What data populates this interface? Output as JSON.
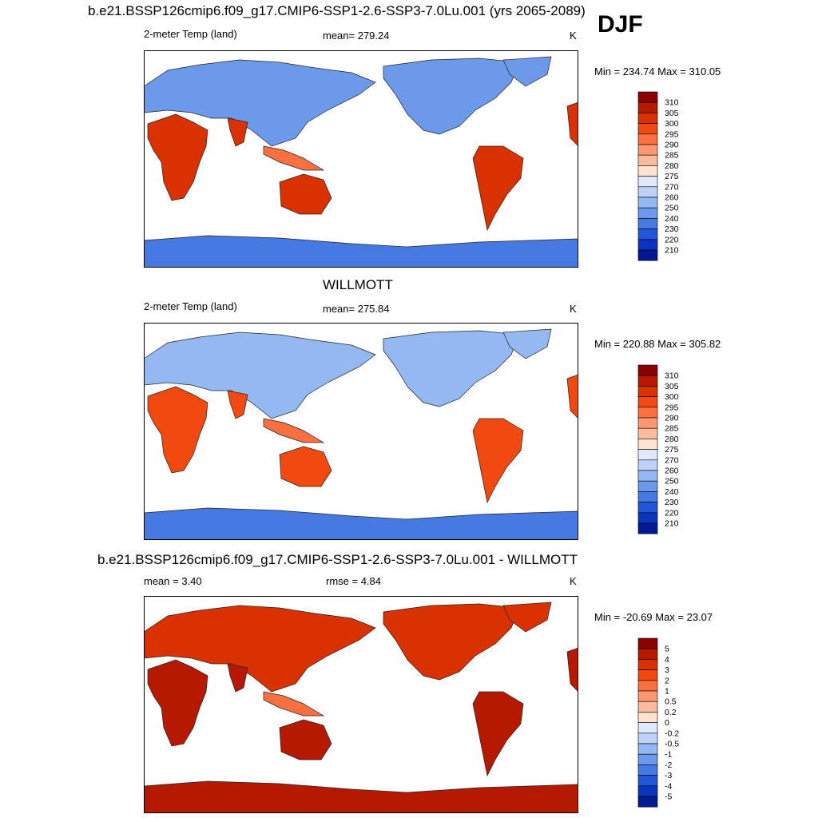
{
  "header": {
    "case_title": "b.e21.BSSP126cmip6.f09_g17.CMIP6-SSP1-2.6-SSP3-7.0Lu.001 (yrs 2065-2089)",
    "season": "DJF"
  },
  "panels": [
    {
      "id": "model",
      "left_label": "2-meter Temp (land)",
      "center_label": "mean= 279.24",
      "units": "K",
      "minmax": "Min = 234.74 Max = 310.05"
    },
    {
      "id": "obs",
      "title": "WILLMOTT",
      "left_label": "2-meter Temp (land)",
      "center_label": "mean= 275.84",
      "units": "K",
      "minmax": "Min = 220.88 Max = 305.82"
    },
    {
      "id": "diff",
      "title": "b.e21.BSSP126cmip6.f09_g17.CMIP6-SSP1-2.6-SSP3-7.0Lu.001 - WILLMOTT",
      "left_label": "mean =   3.40",
      "center_label": "rmse =   4.84",
      "units": "K",
      "minmax": "Min = -20.69 Max =  23.07"
    }
  ],
  "chart_data": [
    {
      "type": "heatmap",
      "title": "b.e21.BSSP126cmip6.f09_g17.CMIP6-SSP1-2.6-SSP3-7.0Lu.001 (yrs 2065-2089)",
      "variable": "2-meter Temp (land)",
      "units": "K",
      "mean": 279.24,
      "min": 234.74,
      "max": 310.05,
      "colorbar_labels": [
        "310",
        "305",
        "300",
        "295",
        "290",
        "285",
        "280",
        "275",
        "270",
        "260",
        "250",
        "240",
        "230",
        "220",
        "210"
      ],
      "colorbar_colors": [
        "#8b0000",
        "#b51a00",
        "#d93200",
        "#f04a10",
        "#fb7040",
        "#fc9772",
        "#fdbb9d",
        "#fde2cf",
        "#dfe9fb",
        "#bcd3f7",
        "#94b8f1",
        "#6c99ea",
        "#4679e2",
        "#2256d8",
        "#0b34bf",
        "#001a93"
      ]
    },
    {
      "type": "heatmap",
      "title": "WILLMOTT",
      "variable": "2-meter Temp (land)",
      "units": "K",
      "mean": 275.84,
      "min": 220.88,
      "max": 305.82,
      "colorbar_labels": [
        "310",
        "305",
        "300",
        "295",
        "290",
        "285",
        "280",
        "275",
        "270",
        "260",
        "250",
        "240",
        "230",
        "220",
        "210"
      ],
      "colorbar_colors": [
        "#8b0000",
        "#b51a00",
        "#d93200",
        "#f04a10",
        "#fb7040",
        "#fc9772",
        "#fdbb9d",
        "#fde2cf",
        "#dfe9fb",
        "#bcd3f7",
        "#94b8f1",
        "#6c99ea",
        "#4679e2",
        "#2256d8",
        "#0b34bf",
        "#001a93"
      ]
    },
    {
      "type": "heatmap",
      "title": "b.e21.BSSP126cmip6.f09_g17.CMIP6-SSP1-2.6-SSP3-7.0Lu.001 - WILLMOTT",
      "units": "K",
      "mean": 3.4,
      "rmse": 4.84,
      "min": -20.69,
      "max": 23.07,
      "colorbar_labels": [
        "5",
        "4",
        "3",
        "2",
        "1",
        "0.5",
        "0.2",
        "0",
        "-0.2",
        "-0.5",
        "-1",
        "-2",
        "-3",
        "-4",
        "-5"
      ],
      "colorbar_colors": [
        "#8b0000",
        "#b51a00",
        "#d93200",
        "#f04a10",
        "#fb7040",
        "#fc9772",
        "#fdbb9d",
        "#fde2cf",
        "#dfe9fb",
        "#bcd3f7",
        "#94b8f1",
        "#6c99ea",
        "#4679e2",
        "#2256d8",
        "#0b34bf",
        "#001a93"
      ]
    }
  ]
}
